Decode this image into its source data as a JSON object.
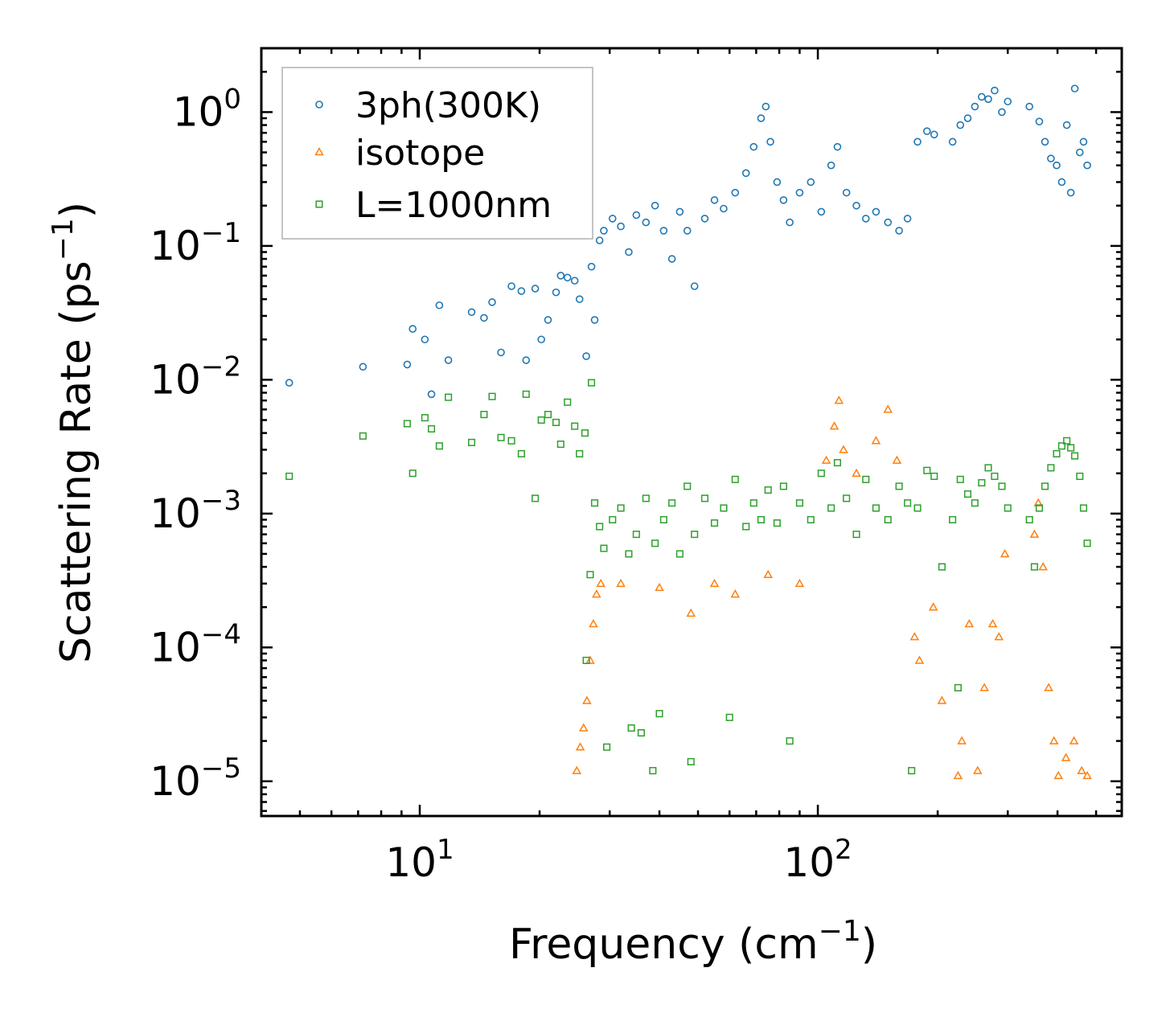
{
  "chart_data": {
    "type": "scatter",
    "xscale": "log",
    "yscale": "log",
    "xlim": [
      4.0,
      580
    ],
    "ylim": [
      5.5e-06,
      3.0
    ],
    "xlabel": "Frequency (cm",
    "xlabel_sup": "−1",
    "xlabel_end": ")",
    "ylabel": "Scattering Rate (ps",
    "ylabel_sup": "−1",
    "ylabel_end": ")",
    "x_ticks": [
      {
        "value": 10,
        "base": "10",
        "exp": "1"
      },
      {
        "value": 100,
        "base": "10",
        "exp": "2"
      }
    ],
    "y_ticks": [
      {
        "value": 1,
        "base": "10",
        "exp": "0"
      },
      {
        "value": 0.1,
        "base": "10",
        "exp": "−1"
      },
      {
        "value": 0.01,
        "base": "10",
        "exp": "−2"
      },
      {
        "value": 0.001,
        "base": "10",
        "exp": "−3"
      },
      {
        "value": 0.0001,
        "base": "10",
        "exp": "−4"
      },
      {
        "value": 1e-05,
        "base": "10",
        "exp": "−5"
      }
    ],
    "legend_position": "top-left",
    "series": [
      {
        "name": "3ph(300K)",
        "marker": "circle",
        "color": "#1f77b4",
        "points": [
          [
            4.7,
            0.0095
          ],
          [
            7.2,
            0.0125
          ],
          [
            9.3,
            0.013
          ],
          [
            9.6,
            0.024
          ],
          [
            10.3,
            0.02
          ],
          [
            10.7,
            0.0078
          ],
          [
            11.2,
            0.036
          ],
          [
            11.8,
            0.014
          ],
          [
            13.5,
            0.032
          ],
          [
            14.5,
            0.029
          ],
          [
            15.2,
            0.038
          ],
          [
            16.0,
            0.016
          ],
          [
            17.0,
            0.05
          ],
          [
            18.0,
            0.046
          ],
          [
            18.5,
            0.014
          ],
          [
            19.5,
            0.048
          ],
          [
            20.2,
            0.02
          ],
          [
            21.0,
            0.028
          ],
          [
            22.0,
            0.045
          ],
          [
            22.6,
            0.06
          ],
          [
            23.5,
            0.058
          ],
          [
            24.5,
            0.055
          ],
          [
            25.2,
            0.04
          ],
          [
            26.2,
            0.015
          ],
          [
            27.0,
            0.07
          ],
          [
            27.5,
            0.028
          ],
          [
            28.3,
            0.11
          ],
          [
            29.0,
            0.13
          ],
          [
            30.5,
            0.16
          ],
          [
            32.0,
            0.14
          ],
          [
            33.5,
            0.09
          ],
          [
            35.0,
            0.17
          ],
          [
            37.0,
            0.15
          ],
          [
            39.0,
            0.2
          ],
          [
            41.0,
            0.13
          ],
          [
            43.0,
            0.08
          ],
          [
            45.0,
            0.18
          ],
          [
            47.0,
            0.13
          ],
          [
            49.0,
            0.05
          ],
          [
            52.0,
            0.16
          ],
          [
            55.0,
            0.22
          ],
          [
            58.0,
            0.19
          ],
          [
            62.0,
            0.25
          ],
          [
            66.0,
            0.35
          ],
          [
            69.0,
            0.55
          ],
          [
            72.0,
            0.9
          ],
          [
            74.0,
            1.1
          ],
          [
            76.0,
            0.6
          ],
          [
            79.0,
            0.3
          ],
          [
            82.0,
            0.22
          ],
          [
            85.0,
            0.15
          ],
          [
            90.0,
            0.25
          ],
          [
            96.0,
            0.3
          ],
          [
            102.0,
            0.18
          ],
          [
            108.0,
            0.4
          ],
          [
            112.0,
            0.55
          ],
          [
            118.0,
            0.25
          ],
          [
            125.0,
            0.2
          ],
          [
            132.0,
            0.16
          ],
          [
            140.0,
            0.18
          ],
          [
            150.0,
            0.15
          ],
          [
            160.0,
            0.13
          ],
          [
            168.0,
            0.16
          ],
          [
            178.0,
            0.6
          ],
          [
            188.0,
            0.72
          ],
          [
            196.0,
            0.68
          ],
          [
            218.0,
            0.6
          ],
          [
            228.0,
            0.8
          ],
          [
            238.0,
            0.9
          ],
          [
            248.0,
            1.1
          ],
          [
            258.0,
            1.3
          ],
          [
            268.0,
            1.25
          ],
          [
            278.0,
            1.45
          ],
          [
            290.0,
            1.0
          ],
          [
            300.0,
            1.2
          ],
          [
            340.0,
            1.1
          ],
          [
            360.0,
            0.85
          ],
          [
            372.0,
            0.6
          ],
          [
            385.0,
            0.45
          ],
          [
            398.0,
            0.4
          ],
          [
            410.0,
            0.3
          ],
          [
            422.0,
            0.8
          ],
          [
            432.0,
            0.25
          ],
          [
            442.0,
            1.5
          ],
          [
            455.0,
            0.5
          ],
          [
            465.0,
            0.6
          ],
          [
            475.0,
            0.4
          ]
        ]
      },
      {
        "name": "isotope",
        "marker": "triangle",
        "color": "#ff7f0e",
        "points": [
          [
            24.8,
            1.2e-05
          ],
          [
            25.3,
            1.8e-05
          ],
          [
            25.8,
            2.5e-05
          ],
          [
            26.3,
            4e-05
          ],
          [
            26.8,
            8e-05
          ],
          [
            27.3,
            0.00015
          ],
          [
            27.8,
            0.00025
          ],
          [
            28.5,
            0.0003
          ],
          [
            32.0,
            0.0003
          ],
          [
            40.0,
            0.00028
          ],
          [
            48.0,
            0.00018
          ],
          [
            55.0,
            0.0003
          ],
          [
            62.0,
            0.00025
          ],
          [
            75.0,
            0.00035
          ],
          [
            90.0,
            0.0003
          ],
          [
            105.0,
            0.0025
          ],
          [
            110.0,
            0.0045
          ],
          [
            113.0,
            0.007
          ],
          [
            116.0,
            0.003
          ],
          [
            125.0,
            0.002
          ],
          [
            140.0,
            0.0035
          ],
          [
            150.0,
            0.006
          ],
          [
            158.0,
            0.0025
          ],
          [
            175.0,
            0.00012
          ],
          [
            180.0,
            8e-05
          ],
          [
            195.0,
            0.0002
          ],
          [
            205.0,
            4e-05
          ],
          [
            225.0,
            1.1e-05
          ],
          [
            230.0,
            2e-05
          ],
          [
            240.0,
            0.00015
          ],
          [
            252.0,
            1.2e-05
          ],
          [
            262.0,
            5e-05
          ],
          [
            275.0,
            0.00015
          ],
          [
            285.0,
            0.00012
          ],
          [
            295.0,
            0.0005
          ],
          [
            350.0,
            0.0007
          ],
          [
            358.0,
            0.0012
          ],
          [
            368.0,
            0.0004
          ],
          [
            380.0,
            5e-05
          ],
          [
            392.0,
            2e-05
          ],
          [
            402.0,
            1.1e-05
          ],
          [
            420.0,
            1.5e-05
          ],
          [
            440.0,
            2e-05
          ],
          [
            460.0,
            1.2e-05
          ],
          [
            475.0,
            1.1e-05
          ]
        ]
      },
      {
        "name": "L=1000nm",
        "marker": "square",
        "color": "#2ca02c",
        "points": [
          [
            4.7,
            0.0019
          ],
          [
            7.2,
            0.0038
          ],
          [
            9.3,
            0.0047
          ],
          [
            9.6,
            0.002
          ],
          [
            10.3,
            0.0052
          ],
          [
            10.7,
            0.0043
          ],
          [
            11.2,
            0.0032
          ],
          [
            11.8,
            0.0074
          ],
          [
            13.5,
            0.0034
          ],
          [
            14.5,
            0.0055
          ],
          [
            15.2,
            0.0075
          ],
          [
            16.0,
            0.0037
          ],
          [
            17.0,
            0.0035
          ],
          [
            18.0,
            0.0028
          ],
          [
            18.5,
            0.0078
          ],
          [
            19.5,
            0.0013
          ],
          [
            20.2,
            0.005
          ],
          [
            21.0,
            0.0055
          ],
          [
            22.0,
            0.0048
          ],
          [
            22.6,
            0.0033
          ],
          [
            23.5,
            0.0068
          ],
          [
            24.5,
            0.0045
          ],
          [
            25.2,
            0.0028
          ],
          [
            26.0,
            0.004
          ],
          [
            26.2,
            8e-05
          ],
          [
            26.8,
            0.00035
          ],
          [
            27.0,
            0.0095
          ],
          [
            27.5,
            0.0012
          ],
          [
            28.3,
            0.0008
          ],
          [
            29.0,
            0.00055
          ],
          [
            29.5,
            1.8e-05
          ],
          [
            30.5,
            0.0009
          ],
          [
            32.0,
            0.0011
          ],
          [
            33.5,
            0.0005
          ],
          [
            34.0,
            2.5e-05
          ],
          [
            35.0,
            0.0007
          ],
          [
            36.0,
            2.3e-05
          ],
          [
            37.0,
            0.0013
          ],
          [
            38.5,
            1.2e-05
          ],
          [
            39.0,
            0.0006
          ],
          [
            40.0,
            3.2e-05
          ],
          [
            41.0,
            0.0009
          ],
          [
            43.0,
            0.0012
          ],
          [
            45.0,
            0.0005
          ],
          [
            47.0,
            0.0016
          ],
          [
            48.0,
            1.4e-05
          ],
          [
            49.0,
            0.0007
          ],
          [
            52.0,
            0.0013
          ],
          [
            55.0,
            0.00085
          ],
          [
            58.0,
            0.0011
          ],
          [
            60.0,
            3e-05
          ],
          [
            62.0,
            0.0018
          ],
          [
            66.0,
            0.0008
          ],
          [
            69.0,
            0.0012
          ],
          [
            72.0,
            0.0009
          ],
          [
            75.0,
            0.0015
          ],
          [
            79.0,
            0.00085
          ],
          [
            82.0,
            0.0016
          ],
          [
            85.0,
            2e-05
          ],
          [
            90.0,
            0.0012
          ],
          [
            96.0,
            0.0009
          ],
          [
            102.0,
            0.002
          ],
          [
            108.0,
            0.0011
          ],
          [
            112.0,
            0.0024
          ],
          [
            118.0,
            0.0013
          ],
          [
            125.0,
            0.0007
          ],
          [
            132.0,
            0.0018
          ],
          [
            140.0,
            0.0011
          ],
          [
            150.0,
            0.0009
          ],
          [
            160.0,
            0.0016
          ],
          [
            168.0,
            0.0012
          ],
          [
            172.0,
            1.2e-05
          ],
          [
            178.0,
            0.0011
          ],
          [
            188.0,
            0.0021
          ],
          [
            196.0,
            0.0019
          ],
          [
            205.0,
            0.0004
          ],
          [
            218.0,
            0.0009
          ],
          [
            225.0,
            5e-05
          ],
          [
            228.0,
            0.0018
          ],
          [
            238.0,
            0.0014
          ],
          [
            248.0,
            0.0012
          ],
          [
            258.0,
            0.0017
          ],
          [
            268.0,
            0.0022
          ],
          [
            278.0,
            0.0019
          ],
          [
            290.0,
            0.0016
          ],
          [
            300.0,
            0.0011
          ],
          [
            340.0,
            0.0009
          ],
          [
            350.0,
            0.0004
          ],
          [
            360.0,
            0.0011
          ],
          [
            372.0,
            0.0016
          ],
          [
            385.0,
            0.0022
          ],
          [
            398.0,
            0.0028
          ],
          [
            410.0,
            0.0032
          ],
          [
            422.0,
            0.0035
          ],
          [
            432.0,
            0.0031
          ],
          [
            442.0,
            0.0027
          ],
          [
            455.0,
            0.0019
          ],
          [
            465.0,
            0.0011
          ],
          [
            475.0,
            0.0006
          ]
        ]
      }
    ]
  }
}
